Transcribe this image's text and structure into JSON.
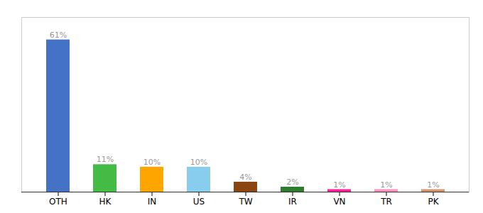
{
  "chart_data": {
    "type": "bar",
    "categories": [
      "OTH",
      "HK",
      "IN",
      "US",
      "TW",
      "IR",
      "VN",
      "TR",
      "PK"
    ],
    "values": [
      61,
      11,
      10,
      10,
      4,
      2,
      1,
      1,
      1
    ],
    "value_labels": [
      "61%",
      "11%",
      "10%",
      "10%",
      "4%",
      "2%",
      "1%",
      "1%",
      "1%"
    ],
    "colors": [
      "#4472c4",
      "#44bb44",
      "#ffa500",
      "#88ccee",
      "#8b4513",
      "#2e7d2e",
      "#ff1c94",
      "#ff91c0",
      "#d2956e"
    ],
    "ylim": [
      0,
      70
    ],
    "data_labels": true,
    "tick_labels": "x",
    "grid": false
  }
}
